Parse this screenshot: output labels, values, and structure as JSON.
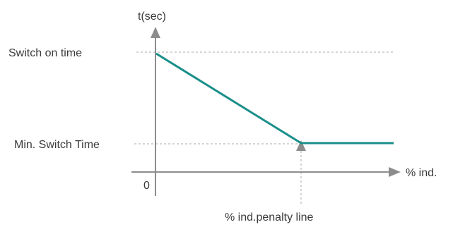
{
  "labels": {
    "y_axis": "t(sec)",
    "x_axis": "% ind.",
    "origin": "0",
    "switch_on_time": "Switch on  time",
    "min_switch_time": "Min. Switch Time",
    "penalty_line": "% ind.penalty line"
  },
  "colors": {
    "curve": "#1a8f8a",
    "axis": "#8c8c8c",
    "guide": "#a8a8a8",
    "text": "#3a3a3a"
  }
}
